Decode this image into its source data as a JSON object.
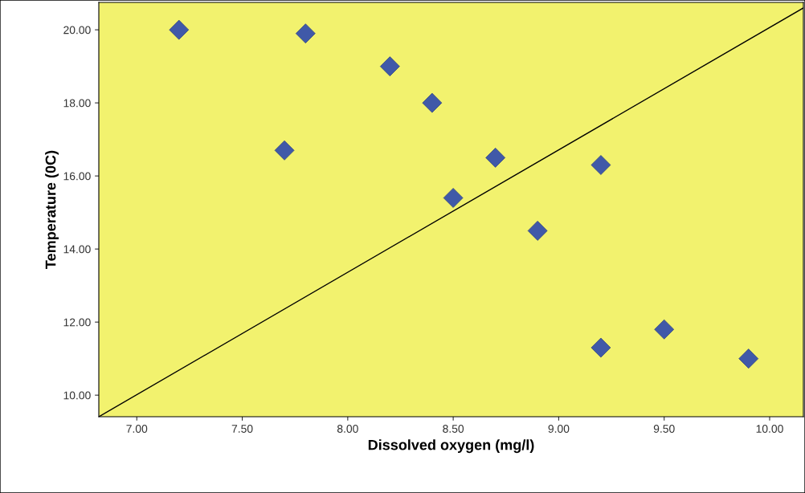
{
  "chart_data": {
    "type": "scatter",
    "xlabel": "Dissolved oxygen (mg/l)",
    "ylabel": "Temperature (0C)",
    "series": [
      {
        "color": "#4059a8",
        "marker": "diamond",
        "x": [
          7.2,
          7.8,
          8.2,
          8.4,
          7.7,
          8.7,
          9.2,
          8.5,
          8.9,
          9.2,
          9.5,
          9.9
        ],
        "values": [
          20.0,
          19.9,
          19.0,
          18.0,
          16.7,
          16.5,
          16.3,
          15.4,
          14.5,
          11.3,
          11.8,
          11.0
        ]
      },
      {
        "type": "line",
        "color": "#000000",
        "marker": "none",
        "x": [
          6.82,
          10.16
        ],
        "values": [
          9.41,
          20.6
        ]
      }
    ],
    "xlim": [
      6.82,
      10.16
    ],
    "ylim": [
      9.41,
      20.75
    ],
    "xticks": [
      {
        "value": 7,
        "label": "7.00"
      },
      {
        "value": 7.5,
        "label": "7.50"
      },
      {
        "value": 8,
        "label": "8.00"
      },
      {
        "value": 8.5,
        "label": "8.50"
      },
      {
        "value": 9,
        "label": "9.00"
      },
      {
        "value": 9.5,
        "label": "9.50"
      },
      {
        "value": 10,
        "label": "10.00"
      }
    ],
    "yticks": [
      {
        "value": 10,
        "label": "10.00"
      },
      {
        "value": 12,
        "label": "12.00"
      },
      {
        "value": 14,
        "label": "14.00"
      },
      {
        "value": 16,
        "label": "16.00"
      },
      {
        "value": 18,
        "label": "18.00"
      },
      {
        "value": 20,
        "label": "20.00"
      }
    ],
    "grid": false,
    "legend": false
  }
}
